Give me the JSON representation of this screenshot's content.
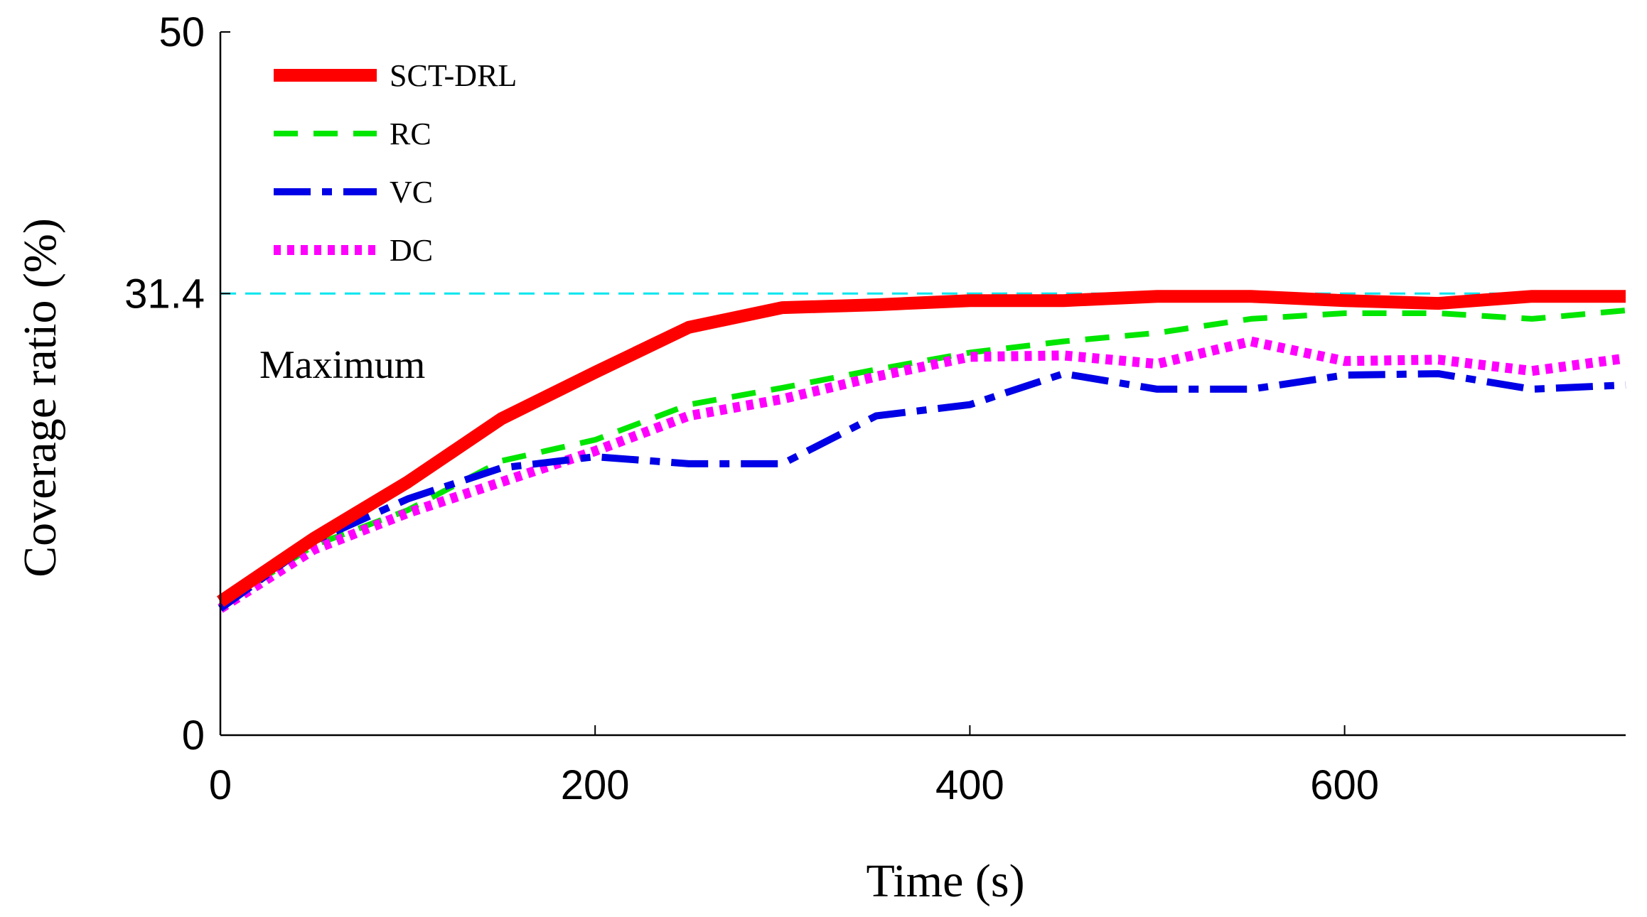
{
  "chart_data": {
    "type": "line",
    "xlabel": "Time (s)",
    "ylabel": "Coverage ratio (%)",
    "xlim": [
      0,
      750
    ],
    "ylim": [
      0,
      50
    ],
    "x_ticks": [
      0,
      200,
      400,
      600
    ],
    "y_ticks": [
      0,
      31.4,
      50
    ],
    "grid": false,
    "legend_position": "top-left",
    "reference_line": {
      "value": 31.4,
      "color": "#00e5ee"
    },
    "annotations": [
      {
        "text": "Maximum"
      }
    ],
    "series": [
      {
        "name": "SCT-DRL",
        "color": "#ff0000",
        "style": "solid",
        "x": [
          0,
          50,
          100,
          150,
          200,
          250,
          300,
          350,
          400,
          450,
          500,
          550,
          600,
          650,
          700,
          750
        ],
        "y": [
          9.5,
          14.0,
          18.0,
          22.5,
          25.8,
          29.0,
          30.4,
          30.6,
          30.9,
          30.9,
          31.2,
          31.2,
          30.9,
          30.7,
          31.2,
          31.2
        ]
      },
      {
        "name": "RC",
        "color": "#00e600",
        "style": "dashed",
        "x": [
          0,
          50,
          100,
          150,
          200,
          250,
          300,
          350,
          400,
          450,
          500,
          550,
          600,
          650,
          700,
          750
        ],
        "y": [
          9.2,
          13.5,
          16.0,
          19.5,
          21.0,
          23.5,
          24.7,
          26.0,
          27.2,
          28.0,
          28.6,
          29.6,
          30.0,
          30.0,
          29.6,
          30.2
        ]
      },
      {
        "name": "VC",
        "color": "#0000e6",
        "style": "dashdot",
        "x": [
          0,
          50,
          100,
          150,
          200,
          250,
          300,
          350,
          400,
          450,
          500,
          550,
          600,
          650,
          700,
          750
        ],
        "y": [
          9.0,
          13.8,
          16.8,
          19.0,
          19.8,
          19.3,
          19.3,
          22.7,
          23.5,
          25.7,
          24.6,
          24.6,
          25.6,
          25.7,
          24.6,
          24.9
        ]
      },
      {
        "name": "DC",
        "color": "#ff00ff",
        "style": "dotted",
        "x": [
          0,
          50,
          100,
          150,
          200,
          250,
          300,
          350,
          400,
          450,
          500,
          550,
          600,
          650,
          700,
          750
        ],
        "y": [
          9.0,
          13.2,
          15.8,
          18.0,
          20.2,
          22.7,
          23.9,
          25.5,
          26.9,
          27.0,
          26.4,
          28.0,
          26.6,
          26.7,
          25.9,
          26.8
        ]
      }
    ]
  }
}
